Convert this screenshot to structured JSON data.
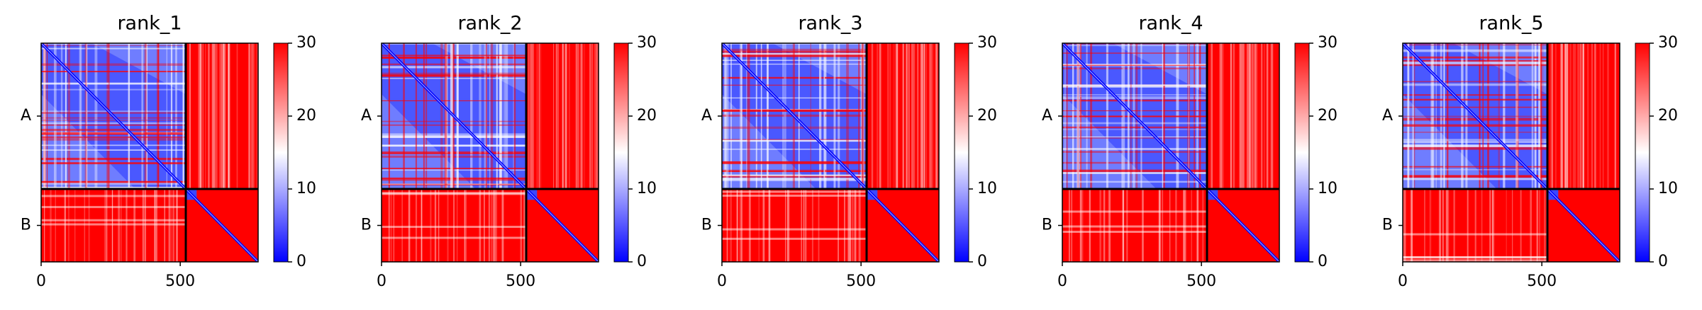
{
  "chart_data": [
    {
      "type": "heatmap",
      "title": "rank_1",
      "xlim": [
        0,
        780
      ],
      "ylim": [
        780,
        0
      ],
      "xticks": [
        0,
        500
      ],
      "chains": [
        {
          "label": "A",
          "start": 0,
          "end": 520
        },
        {
          "label": "B",
          "start": 520,
          "end": 780
        }
      ],
      "colorbar": {
        "clim": [
          0,
          30
        ],
        "ticks": [
          0,
          10,
          20,
          30
        ],
        "cmap": [
          "#0000ff",
          "#ffffff",
          "#ff0000"
        ]
      }
    },
    {
      "type": "heatmap",
      "title": "rank_2",
      "xlim": [
        0,
        780
      ],
      "ylim": [
        780,
        0
      ],
      "xticks": [
        0,
        500
      ],
      "chains": [
        {
          "label": "A",
          "start": 0,
          "end": 520
        },
        {
          "label": "B",
          "start": 520,
          "end": 780
        }
      ],
      "colorbar": {
        "clim": [
          0,
          30
        ],
        "ticks": [
          0,
          10,
          20,
          30
        ],
        "cmap": [
          "#0000ff",
          "#ffffff",
          "#ff0000"
        ]
      }
    },
    {
      "type": "heatmap",
      "title": "rank_3",
      "xlim": [
        0,
        780
      ],
      "ylim": [
        780,
        0
      ],
      "xticks": [
        0,
        500
      ],
      "chains": [
        {
          "label": "A",
          "start": 0,
          "end": 520
        },
        {
          "label": "B",
          "start": 520,
          "end": 780
        }
      ],
      "colorbar": {
        "clim": [
          0,
          30
        ],
        "ticks": [
          0,
          10,
          20,
          30
        ],
        "cmap": [
          "#0000ff",
          "#ffffff",
          "#ff0000"
        ]
      }
    },
    {
      "type": "heatmap",
      "title": "rank_4",
      "xlim": [
        0,
        780
      ],
      "ylim": [
        780,
        0
      ],
      "xticks": [
        0,
        500
      ],
      "chains": [
        {
          "label": "A",
          "start": 0,
          "end": 520
        },
        {
          "label": "B",
          "start": 520,
          "end": 780
        }
      ],
      "colorbar": {
        "clim": [
          0,
          30
        ],
        "ticks": [
          0,
          10,
          20,
          30
        ],
        "cmap": [
          "#0000ff",
          "#ffffff",
          "#ff0000"
        ]
      }
    },
    {
      "type": "heatmap",
      "title": "rank_5",
      "xlim": [
        0,
        780
      ],
      "ylim": [
        780,
        0
      ],
      "xticks": [
        0,
        500
      ],
      "chains": [
        {
          "label": "A",
          "start": 0,
          "end": 520
        },
        {
          "label": "B",
          "start": 520,
          "end": 780
        }
      ],
      "colorbar": {
        "clim": [
          0,
          30
        ],
        "ticks": [
          0,
          10,
          20,
          30
        ],
        "cmap": [
          "#0000ff",
          "#ffffff",
          "#ff0000"
        ]
      }
    }
  ]
}
